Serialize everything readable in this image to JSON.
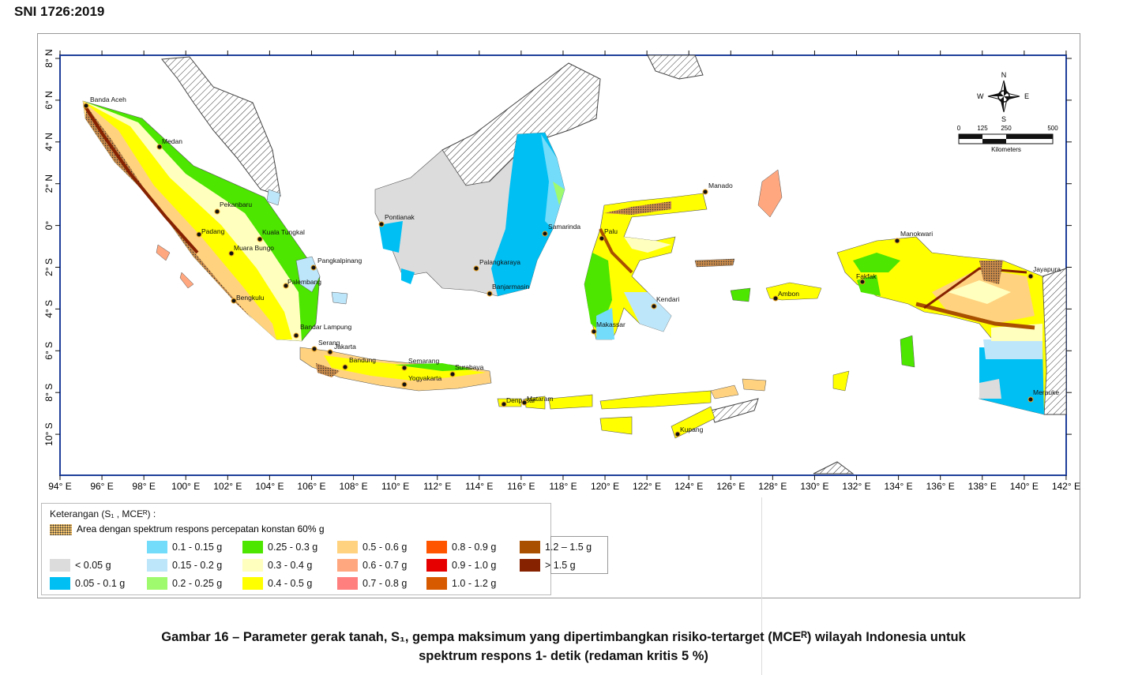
{
  "doc_id": "SNI 1726:2019",
  "map": {
    "lon_ticks": [
      "94° E",
      "96° E",
      "98° E",
      "100° E",
      "102° E",
      "104° E",
      "106° E",
      "108° E",
      "110° E",
      "112° E",
      "114° E",
      "116° E",
      "118° E",
      "120° E",
      "122° E",
      "124° E",
      "126° E",
      "128° E",
      "130° E",
      "132° E",
      "134° E",
      "136° E",
      "138° E",
      "140° E",
      "142° E"
    ],
    "lat_ticks": [
      "8° N",
      "6° N",
      "4° N",
      "2° N",
      "0°",
      "2° S",
      "4° S",
      "6° S",
      "8° S",
      "10° S"
    ],
    "cities": [
      "Banda Aceh",
      "Medan",
      "Pekanbaru",
      "Padang",
      "Muara Bungo",
      "Kuala Tungkal",
      "Pangkalpinang",
      "Palembang",
      "Bengkulu",
      "Bandar Lampung",
      "Serang",
      "Jakarta",
      "Bandung",
      "Semarang",
      "Surabaya",
      "Yogyakarta",
      "Denpasar",
      "Mataram",
      "Pontianak",
      "Palangkaraya",
      "Banjarmasin",
      "Samarinda",
      "Palu",
      "Manado",
      "Makassar",
      "Kendari",
      "Kupang",
      "Ambon",
      "Manokwari",
      "Fakfak",
      "Jayapura",
      "Merauke"
    ],
    "compass": {
      "n": "N",
      "s": "S",
      "e": "E",
      "w": "W"
    },
    "scale": {
      "ticks": [
        "0",
        "125",
        "250",
        "500"
      ],
      "unit": "Kilometers"
    }
  },
  "legend": {
    "title": "Keterangan (S₁ , MCEᴿ) :",
    "hatch_label": "Area dengan spektrum respons percepatan konstan 60% g",
    "hatch_color": "#f6c46e",
    "classes": [
      {
        "label": "< 0.05 g",
        "color": "#DCDCDC"
      },
      {
        "label": "0.05 - 0.1 g",
        "color": "#00BFF3"
      },
      {
        "label": "0.1 - 0.15 g",
        "color": "#72DCFA"
      },
      {
        "label": "0.15 - 0.2 g",
        "color": "#BEE6FA"
      },
      {
        "label": "0.2 - 0.25 g",
        "color": "#A0FA6E"
      },
      {
        "label": "0.25 - 0.3 g",
        "color": "#4CE600"
      },
      {
        "label": "0.3 - 0.4 g",
        "color": "#FFFFBE"
      },
      {
        "label": "0.4 - 0.5 g",
        "color": "#FFFF00"
      },
      {
        "label": "0.5 - 0.6 g",
        "color": "#FFD27F"
      },
      {
        "label": "0.6 - 0.7 g",
        "color": "#FFA77F"
      },
      {
        "label": "0.7 - 0.8 g",
        "color": "#FF7F7F"
      },
      {
        "label": "0.8 - 0.9 g",
        "color": "#FF5500"
      },
      {
        "label": "0.9 - 1.0 g",
        "color": "#E60000"
      },
      {
        "label": "1.0  - 1.2 g",
        "color": "#D75A00"
      },
      {
        "label": "1.2 – 1.5 g",
        "color": "#A85000"
      },
      {
        "label": "> 1.5 g",
        "color": "#872200"
      }
    ]
  },
  "caption": {
    "line1": "Gambar 16 – Parameter gerak tanah, S₁, gempa maksimum yang dipertimbangkan risiko-tertarget (MCEᴿ) wilayah Indonesia untuk",
    "line2": "spektrum respons 1- detik (redaman kritis 5 %)"
  }
}
